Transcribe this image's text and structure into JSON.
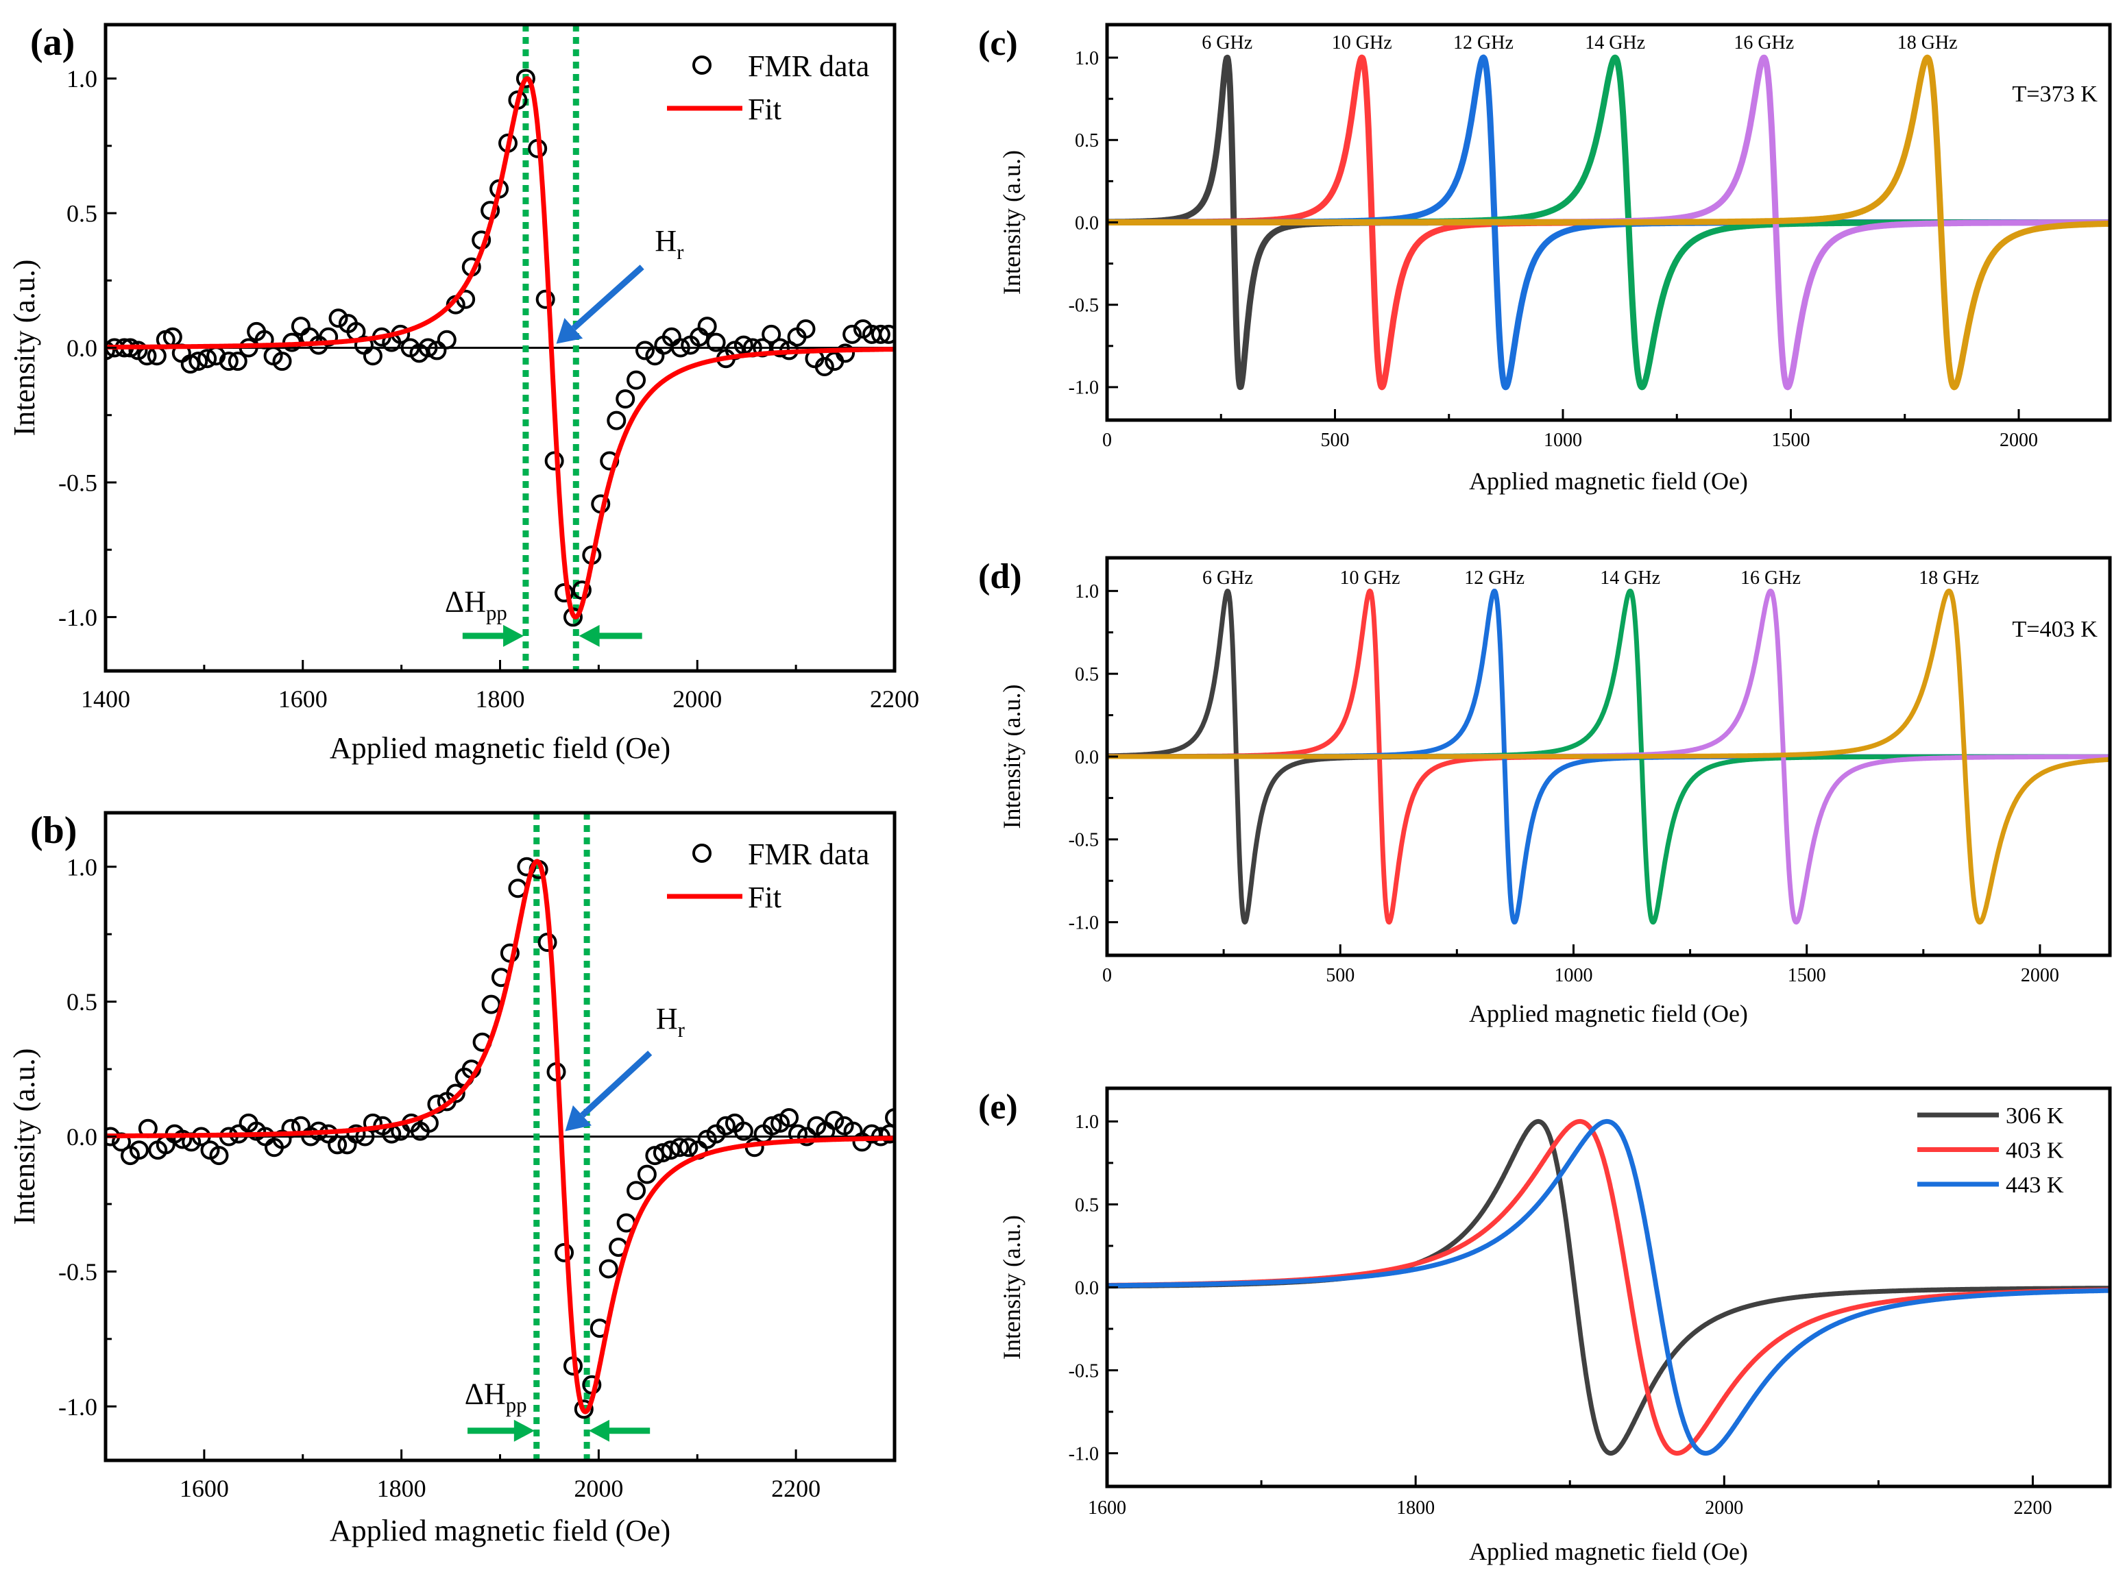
{
  "chart_data": [
    {
      "panel": "(a)",
      "type": "scatter",
      "xlabel": "Applied magnetic field (Oe)",
      "ylabel": "Intensity (a.u.)",
      "xlim": [
        1400,
        2200
      ],
      "ylim": [
        -1.2,
        1.2
      ],
      "xticks": [
        1400,
        1600,
        1800,
        2000,
        2200
      ],
      "xtick_labels": [
        "1400",
        "1600",
        "1800",
        "2000",
        "2200"
      ],
      "yticks": [
        1.0,
        0.5,
        0.0,
        -0.5,
        -1.0
      ],
      "ytick_labels": [
        "1.0",
        "0.5",
        "0.0",
        "-0.5",
        "-1.0"
      ],
      "legend": {
        "placement": "top-right",
        "entries": [
          "FMR data",
          "Fit"
        ]
      },
      "series": [
        {
          "name": "FMR data",
          "marker": "open-circle",
          "color": "#000000",
          "x": [
            1400,
            1409,
            1419,
            1425,
            1433,
            1442,
            1452,
            1461,
            1468,
            1477,
            1486,
            1494,
            1503,
            1512,
            1525,
            1534,
            1545,
            1553,
            1561,
            1570,
            1579,
            1589,
            1598,
            1607,
            1616,
            1626,
            1636,
            1646,
            1654,
            1662,
            1671,
            1680,
            1690,
            1699,
            1709,
            1718,
            1727,
            1736,
            1746,
            1755,
            1765,
            1771,
            1781,
            1790,
            1799,
            1808,
            1818,
            1826,
            1838,
            1846,
            1855,
            1865,
            1874,
            1883,
            1893,
            1902,
            1911,
            1918,
            1927,
            1938,
            1947,
            1957,
            1966,
            1974,
            1983,
            1993,
            2002,
            2010,
            2019,
            2029,
            2038,
            2047,
            2056,
            2066,
            2075,
            2084,
            2093,
            2101,
            2110,
            2119,
            2129,
            2139,
            2150,
            2157,
            2168,
            2177,
            2186,
            2194
          ],
          "y": [
            -0.01,
            0.0,
            0.0,
            0.0,
            -0.01,
            -0.03,
            -0.03,
            0.03,
            0.04,
            -0.02,
            -0.06,
            -0.05,
            -0.04,
            -0.03,
            -0.05,
            -0.05,
            0.0,
            0.06,
            0.03,
            -0.03,
            -0.05,
            0.02,
            0.08,
            0.04,
            0.01,
            0.04,
            0.11,
            0.09,
            0.06,
            0.01,
            -0.03,
            0.04,
            0.02,
            0.05,
            0.0,
            -0.02,
            0.0,
            -0.01,
            0.03,
            0.16,
            0.18,
            0.3,
            0.4,
            0.51,
            0.59,
            0.76,
            0.92,
            1.0,
            0.74,
            0.18,
            -0.42,
            -0.91,
            -1.0,
            -0.9,
            -0.77,
            -0.58,
            -0.42,
            -0.27,
            -0.19,
            -0.12,
            -0.01,
            -0.03,
            0.01,
            0.04,
            0.0,
            0.01,
            0.04,
            0.08,
            0.02,
            -0.04,
            -0.01,
            0.01,
            0.0,
            0.0,
            0.05,
            0.0,
            -0.01,
            0.04,
            0.07,
            -0.04,
            -0.07,
            -0.05,
            -0.02,
            0.05,
            0.07,
            0.05,
            0.05,
            0.05
          ]
        },
        {
          "name": "Fit",
          "model": "Lorentzian derivative",
          "color": "#ff0000",
          "Hr": 1852,
          "dHpp": 49
        }
      ],
      "guide_lines_x": [
        1826,
        1877
      ],
      "guide_color": "#00b050",
      "arrow_color": "#1e6fd0",
      "zero_line": true,
      "annotations": {
        "hr": {
          "main": "H",
          "sub": "r"
        },
        "dhpp": {
          "main": "ΔH",
          "sub": "pp"
        }
      }
    },
    {
      "panel": "(b)",
      "type": "scatter",
      "xlabel": "Applied magnetic field (Oe)",
      "ylabel": "Intensity (a.u.)",
      "xlim": [
        1500,
        2300
      ],
      "ylim": [
        -1.2,
        1.2
      ],
      "xticks": [
        1600,
        1800,
        2000,
        2200
      ],
      "xtick_labels": [
        "1600",
        "1800",
        "2000",
        "2200"
      ],
      "yticks": [
        1.0,
        0.5,
        0.0,
        -0.5,
        -1.0
      ],
      "ytick_labels": [
        "1.0",
        "0.5",
        "0.0",
        "-0.5",
        "-1.0"
      ],
      "legend": {
        "placement": "top-right",
        "entries": [
          "FMR data",
          "Fit"
        ]
      },
      "series": [
        {
          "name": "FMR data",
          "marker": "open-circle",
          "color": "#000000",
          "x": [
            1505,
            1516,
            1525,
            1534,
            1543,
            1553,
            1561,
            1570,
            1578,
            1587,
            1597,
            1606,
            1615,
            1625,
            1635,
            1645,
            1653,
            1662,
            1671,
            1679,
            1688,
            1698,
            1708,
            1716,
            1726,
            1735,
            1745,
            1754,
            1763,
            1771,
            1781,
            1790,
            1799,
            1810,
            1819,
            1828,
            1836,
            1846,
            1855,
            1864,
            1871,
            1882,
            1891,
            1901,
            1910,
            1918,
            1927,
            1939,
            1948,
            1957,
            1965,
            1974,
            1985,
            1993,
            2001,
            2010,
            2020,
            2028,
            2038,
            2049,
            2057,
            2065,
            2073,
            2082,
            2091,
            2101,
            2110,
            2119,
            2129,
            2138,
            2147,
            2158,
            2167,
            2176,
            2184,
            2193,
            2202,
            2211,
            2221,
            2230,
            2239,
            2249,
            2258,
            2267,
            2277,
            2286,
            2295,
            2300
          ],
          "y": [
            0.0,
            -0.02,
            -0.07,
            -0.05,
            0.03,
            -0.05,
            -0.03,
            0.01,
            -0.01,
            -0.02,
            0.0,
            -0.05,
            -0.07,
            0.0,
            0.01,
            0.05,
            0.02,
            0.0,
            -0.04,
            -0.01,
            0.03,
            0.04,
            0.0,
            0.02,
            0.01,
            -0.03,
            -0.03,
            0.01,
            0.0,
            0.05,
            0.04,
            0.01,
            0.02,
            0.05,
            0.02,
            0.05,
            0.12,
            0.13,
            0.16,
            0.22,
            0.25,
            0.35,
            0.49,
            0.59,
            0.68,
            0.92,
            1.0,
            0.99,
            0.72,
            0.24,
            -0.43,
            -0.85,
            -1.01,
            -0.92,
            -0.71,
            -0.49,
            -0.41,
            -0.32,
            -0.2,
            -0.14,
            -0.07,
            -0.06,
            -0.05,
            -0.04,
            -0.04,
            -0.05,
            -0.01,
            0.01,
            0.04,
            0.05,
            0.02,
            -0.04,
            0.01,
            0.04,
            0.05,
            0.07,
            0.01,
            0.0,
            0.04,
            0.02,
            0.06,
            0.04,
            0.02,
            -0.02,
            0.01,
            0.0,
            0.01,
            0.07
          ]
        },
        {
          "name": "Fit",
          "model": "Lorentzian derivative",
          "color": "#ff0000",
          "Hr": 1962,
          "dHpp": 49,
          "amplitude": 1.02
        }
      ],
      "guide_lines_x": [
        1937,
        1988
      ],
      "guide_color": "#00b050",
      "arrow_color": "#1e6fd0",
      "zero_line": true,
      "annotations": {
        "hr": {
          "main": "H",
          "sub": "r"
        },
        "dhpp": {
          "main": "ΔH",
          "sub": "pp"
        }
      }
    },
    {
      "panel": "(c)",
      "type": "line",
      "xlabel": "Applied magnetic field (Oe)",
      "ylabel": "Intensity (a.u.)",
      "xlim": [
        0,
        2200
      ],
      "ylim": [
        -1.2,
        1.2
      ],
      "xticks": [
        0,
        500,
        1000,
        1500,
        2000
      ],
      "xtick_labels": [
        "0",
        "500",
        "1000",
        "1500",
        "2000"
      ],
      "yticks": [
        1.0,
        0.5,
        0.0,
        -0.5,
        -1.0
      ],
      "ytick_labels": [
        "1.0",
        "0.5",
        "0.0",
        "-0.5",
        "-1.0"
      ],
      "condition_label": "T=373 K",
      "series": [
        {
          "name": "6 GHz",
          "color": "#404040",
          "label_color": "#000000",
          "Hr": 278,
          "dHpp": 29
        },
        {
          "name": "10 GHz",
          "color": "#ff3b3b",
          "label_color": "#ff1a1a",
          "Hr": 581,
          "dHpp": 44
        },
        {
          "name": "12 GHz",
          "color": "#1a6fdb",
          "label_color": "#1a1aff",
          "Hr": 850,
          "dHpp": 49
        },
        {
          "name": "14 GHz",
          "color": "#0aa35a",
          "label_color": "#109a3a",
          "Hr": 1144,
          "dHpp": 59
        },
        {
          "name": "16 GHz",
          "color": "#c679e6",
          "label_color": "#b040f0",
          "Hr": 1467,
          "dHpp": 52
        },
        {
          "name": "18 GHz",
          "color": "#d99a10",
          "label_color": "#c8921e",
          "Hr": 1829,
          "dHpp": 59
        }
      ]
    },
    {
      "panel": "(d)",
      "type": "line",
      "xlabel": "Applied magnetic field (Oe)",
      "ylabel": "Intensity (a.u.)",
      "xlim": [
        0,
        2150
      ],
      "ylim": [
        -1.2,
        1.2
      ],
      "xticks": [
        0,
        500,
        1000,
        1500,
        2000
      ],
      "xtick_labels": [
        "0",
        "500",
        "1000",
        "1500",
        "2000"
      ],
      "yticks": [
        1.0,
        0.5,
        0.0,
        -0.5,
        -1.0
      ],
      "ytick_labels": [
        "1.0",
        "0.5",
        "0.0",
        "-0.5",
        "-1.0"
      ],
      "condition_label": "T=403 K",
      "series": [
        {
          "name": "6 GHz",
          "color": "#404040",
          "label_color": "#000000",
          "Hr": 277,
          "dHpp": 37
        },
        {
          "name": "10 GHz",
          "color": "#ff3b3b",
          "label_color": "#ff1a1a",
          "Hr": 584,
          "dHpp": 41
        },
        {
          "name": "12 GHz",
          "color": "#1a6fdb",
          "label_color": "#1a1aff",
          "Hr": 852,
          "dHpp": 43
        },
        {
          "name": "14 GHz",
          "color": "#0aa35a",
          "label_color": "#109a3a",
          "Hr": 1146,
          "dHpp": 49
        },
        {
          "name": "16 GHz",
          "color": "#c679e6",
          "label_color": "#b040f0",
          "Hr": 1450,
          "dHpp": 55
        },
        {
          "name": "18 GHz",
          "color": "#d99a10",
          "label_color": "#c8921e",
          "Hr": 1838,
          "dHpp": 66
        }
      ]
    },
    {
      "panel": "(e)",
      "type": "line",
      "xlabel": "Applied magnetic field (Oe)",
      "ylabel": "Intensity (a.u.)",
      "xlim": [
        1600,
        2250
      ],
      "ylim": [
        -1.2,
        1.2
      ],
      "xticks": [
        1600,
        1800,
        2000,
        2200
      ],
      "xtick_labels": [
        "1600",
        "1800",
        "2000",
        "2200"
      ],
      "yticks": [
        1.0,
        0.5,
        0.0,
        -0.5,
        -1.0
      ],
      "ytick_labels": [
        "1.0",
        "0.5",
        "0.0",
        "-0.5",
        "-1.0"
      ],
      "legend": {
        "placement": "top-right",
        "entries": [
          "306 K",
          "403 K",
          "443 K"
        ]
      },
      "series": [
        {
          "name": "306 K",
          "color": "#404040",
          "Hr": 1903,
          "dHpp": 47
        },
        {
          "name": "403 K",
          "color": "#ff3b3b",
          "Hr": 1938,
          "dHpp": 63
        },
        {
          "name": "443 K",
          "color": "#1a6fdb",
          "Hr": 1956,
          "dHpp": 64
        }
      ]
    }
  ]
}
